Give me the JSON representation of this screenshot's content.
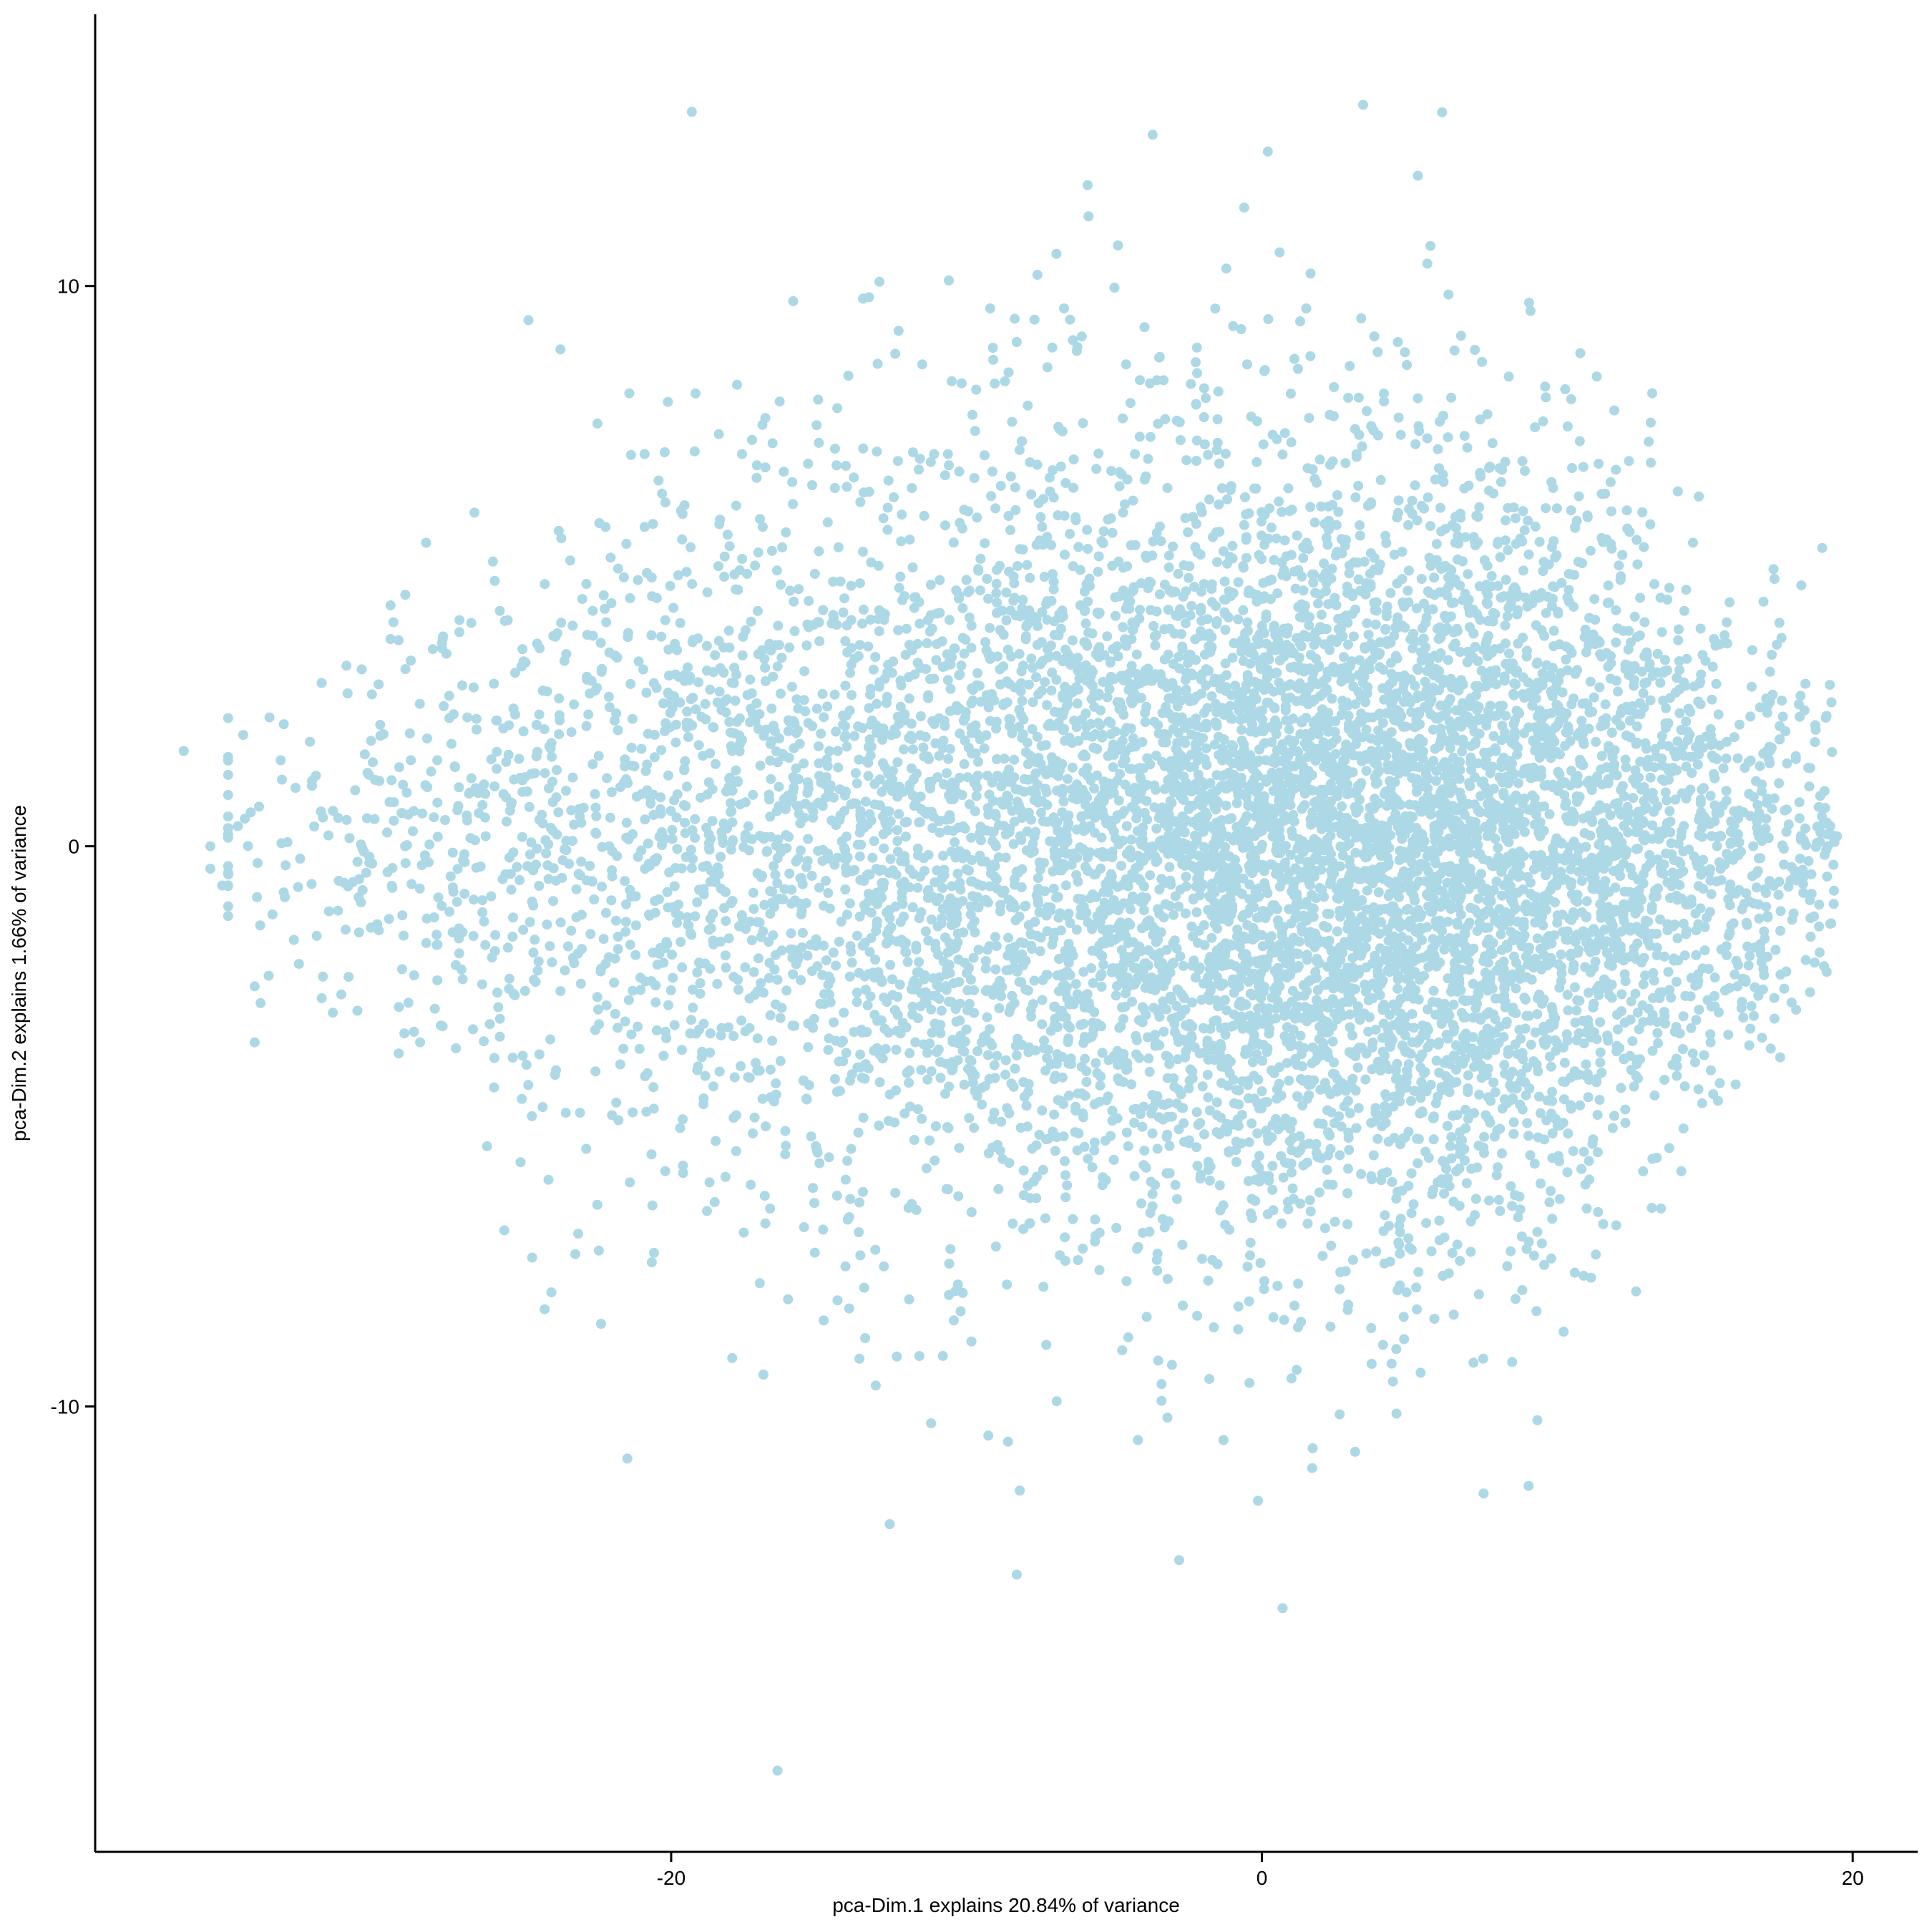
{
  "chart_data": {
    "type": "scatter",
    "title": "",
    "xlabel": "pca-Dim.1 explains 20.84% of variance",
    "ylabel": "pca-Dim.2 explains 1.66% of variance",
    "xlim": [
      -39.5,
      22.2
    ],
    "ylim": [
      -17.95,
      14.85
    ],
    "x_ticks": [
      -20,
      0,
      20
    ],
    "x_tick_labels": [
      "-20",
      "0",
      "20"
    ],
    "y_ticks": [
      -10,
      0,
      10
    ],
    "y_tick_labels": [
      "-10",
      "0",
      "10"
    ],
    "grid": false,
    "legend": "none",
    "point_color": "#ADD8E6",
    "series": [
      {
        "values_note_free": true,
        "outliers": [
          [
            -36.5,
            1.7
          ],
          [
            -35.6,
            0.0
          ],
          [
            -35.6,
            -0.4
          ],
          [
            -35.2,
            -0.7
          ],
          [
            -34.0,
            -0.3
          ],
          [
            -34.1,
            -2.5
          ],
          [
            -33.9,
            -2.8
          ],
          [
            -34.1,
            -3.5
          ],
          [
            -33.6,
            2.3
          ],
          [
            -32.6,
            -2.1
          ],
          [
            -32.0,
            -1.6
          ],
          [
            -30.7,
            1.0
          ],
          [
            -30.5,
            -1.0
          ],
          [
            -30.3,
            0.5
          ],
          [
            -30.1,
            1.5
          ],
          [
            -29.9,
            -1.5
          ],
          [
            -29.5,
            3.7
          ],
          [
            -29.4,
            4.0
          ],
          [
            -29.5,
            4.3
          ],
          [
            -28.5,
            -3.5
          ],
          [
            -28.0,
            -2.9
          ],
          [
            -27.7,
            2.5
          ],
          [
            -27.8,
            -3.2
          ],
          [
            -26.9,
            2.3
          ],
          [
            -27.1,
            -2.2
          ],
          [
            -25.8,
            4.2
          ],
          [
            -25.8,
            -3.4
          ],
          [
            -25.0,
            3.3
          ],
          [
            -24.9,
            -3.9
          ],
          [
            -24.8,
            0.7
          ],
          [
            -23.8,
            2.0
          ],
          [
            -23.9,
            -4.0
          ],
          [
            -22.2,
            4.0
          ],
          [
            -22.0,
            -4.8
          ],
          [
            -21.6,
            4.8
          ],
          [
            -21.1,
            3.3
          ],
          [
            -20.6,
            -4.3
          ],
          [
            -20.9,
            7.0
          ],
          [
            -20.9,
            5.7
          ],
          [
            -20.2,
            -5.8
          ],
          [
            -19.8,
            3.5
          ],
          [
            -18.9,
            -4.5
          ],
          [
            -18.7,
            -6.0
          ],
          [
            -18.4,
            5.0
          ],
          [
            -17.6,
            7.0
          ],
          [
            -17.1,
            6.8
          ],
          [
            -16.9,
            5.7
          ],
          [
            -16.5,
            -2.2
          ],
          [
            -16.8,
            -5.0
          ],
          [
            -15.9,
            6.5
          ],
          [
            -15.0,
            7.2
          ],
          [
            -15.2,
            -6.1
          ],
          [
            -14.4,
            6.8
          ],
          [
            -14.1,
            -7.5
          ],
          [
            -14.0,
            8.4
          ],
          [
            -13.5,
            7.1
          ],
          [
            -13.3,
            9.8
          ],
          [
            -12.8,
            -7.5
          ],
          [
            -12.3,
            9.2
          ],
          [
            -11.5,
            8.6
          ],
          [
            -11.1,
            7.0
          ],
          [
            -10.6,
            10.1
          ],
          [
            -10.6,
            6.8
          ],
          [
            -10.5,
            8.3
          ],
          [
            -10.2,
            -8.3
          ],
          [
            -9.8,
            7.7
          ],
          [
            -9.2,
            9.6
          ],
          [
            -8.7,
            8.3
          ],
          [
            -8.5,
            6.6
          ],
          [
            -8.3,
            9.0
          ],
          [
            -7.7,
            9.4
          ],
          [
            -7.6,
            10.2
          ],
          [
            -7.3,
            -8.9
          ],
          [
            -7.4,
            6.2
          ],
          [
            -6.7,
            9.6
          ],
          [
            -6.5,
            9.4
          ],
          [
            -6.1,
            9.1
          ],
          [
            -5.9,
            11.8
          ],
          [
            -5.1,
            6.7
          ],
          [
            -4.6,
            8.6
          ],
          [
            -4.3,
            7.0
          ],
          [
            -3.7,
            12.7
          ],
          [
            -3.4,
            -9.6
          ],
          [
            -3.4,
            -9.9
          ],
          [
            -3.2,
            -10.2
          ],
          [
            -2.2,
            8.9
          ],
          [
            -1.9,
            8.0
          ],
          [
            -1.5,
            7.2
          ],
          [
            -1.3,
            -10.6
          ],
          [
            -0.6,
            11.4
          ],
          [
            -0.5,
            8.6
          ],
          [
            0.1,
            8.5
          ],
          [
            0.2,
            12.4
          ],
          [
            0.6,
            10.6
          ],
          [
            1.1,
            8.7
          ],
          [
            1.5,
            9.6
          ],
          [
            2.3,
            7.7
          ],
          [
            3.2,
            7.0
          ],
          [
            3.7,
            7.5
          ],
          [
            4.6,
            9.0
          ],
          [
            5.3,
            7.5
          ],
          [
            5.6,
            10.4
          ],
          [
            6.3,
            7.3
          ],
          [
            6.1,
            13.1
          ],
          [
            1.0,
            -9.5
          ],
          [
            1.7,
            -11.1
          ],
          [
            0.7,
            -13.6
          ],
          [
            -16.4,
            -16.5
          ],
          [
            -8.3,
            -13.0
          ],
          [
            -8.2,
            -11.5
          ],
          [
            -12.6,
            -12.1
          ],
          [
            -11.2,
            -10.3
          ],
          [
            -4.2,
            -10.6
          ],
          [
            -3.9,
            -8.4
          ],
          [
            4.1,
            -8.9
          ],
          [
            4.8,
            -8.4
          ],
          [
            3.7,
            -8.6
          ],
          [
            6.7,
            -7.4
          ],
          [
            1.1,
            -8.2
          ],
          [
            5.3,
            -7.6
          ],
          [
            -17.0,
            -7.8
          ],
          [
            -15.5,
            -6.8
          ],
          [
            -19.6,
            -5.7
          ],
          [
            -21.4,
            -6.0
          ],
          [
            -22.5,
            -6.4
          ],
          [
            12.3,
            -4.7
          ],
          [
            13.9,
            -3.9
          ],
          [
            15.2,
            -4.0
          ],
          [
            16.1,
            -2.5
          ],
          [
            17.0,
            -2.3
          ],
          [
            18.0,
            -1.2
          ],
          [
            18.6,
            -0.5
          ],
          [
            19.3,
            0.2
          ],
          [
            18.9,
            0.9
          ],
          [
            18.4,
            2.9
          ],
          [
            17.6,
            2.6
          ],
          [
            16.6,
            3.5
          ],
          [
            15.3,
            3.7
          ],
          [
            14.3,
            4.2
          ],
          [
            13.6,
            3.1
          ],
          [
            12.2,
            5.2
          ],
          [
            11.5,
            5.5
          ],
          [
            10.6,
            5.7
          ],
          [
            9.8,
            6.5
          ],
          [
            8.9,
            6.7
          ],
          [
            8.1,
            6.5
          ],
          [
            7.4,
            6.6
          ],
          [
            11.7,
            -3.4
          ],
          [
            12.8,
            -3.8
          ],
          [
            14.7,
            -3.1
          ],
          [
            15.8,
            -1.6
          ]
        ]
      }
    ]
  }
}
